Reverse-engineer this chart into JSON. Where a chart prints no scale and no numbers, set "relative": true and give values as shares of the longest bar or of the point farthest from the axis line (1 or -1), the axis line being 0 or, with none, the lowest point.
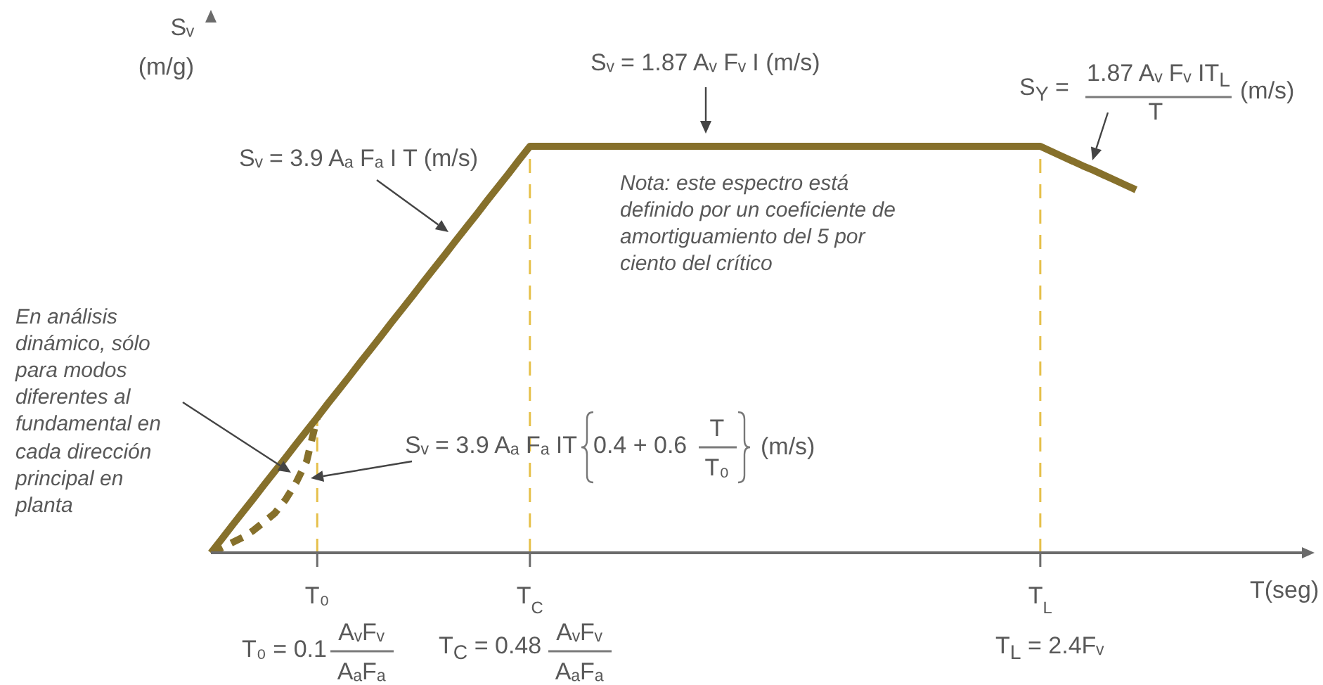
{
  "chart_data": {
    "type": "line",
    "xlabel": "T(seg)",
    "ylabel": "Sᵥ (m/g)",
    "relative": true,
    "marker": "none",
    "categories": [
      null,
      null,
      null,
      null,
      null,
      null,
      null,
      null,
      null,
      null,
      "T₀",
      null,
      null,
      null,
      null,
      null,
      null,
      null,
      null,
      null,
      null,
      null,
      null,
      null,
      null,
      null,
      null,
      null,
      null,
      null,
      "T$_{C}$",
      null,
      null,
      null,
      null,
      null,
      null,
      null,
      null,
      null,
      null,
      null,
      null,
      null,
      null,
      null,
      null,
      null,
      null,
      null,
      null,
      null,
      null,
      null,
      null,
      null,
      null,
      null,
      null,
      null,
      null,
      null,
      null,
      null,
      null,
      null,
      null,
      null,
      null,
      null,
      null,
      null,
      null,
      null,
      null,
      null,
      null,
      null,
      "T$_{L}$",
      null,
      null,
      null,
      null,
      null,
      null,
      null,
      null,
      null,
      null,
      null,
      null,
      null,
      null,
      null,
      null,
      null,
      null,
      null,
      null,
      null,
      null,
      null,
      null,
      null
    ],
    "series": [
      {
        "color": "#86702b",
        "line_style": "solid",
        "values": [
          0,
          0.033,
          0.067,
          0.1,
          0.133,
          0.167,
          0.2,
          0.233,
          0.267,
          0.3,
          0.333,
          0.367,
          0.4,
          0.433,
          0.467,
          0.5,
          0.533,
          0.567,
          0.6,
          0.633,
          0.667,
          0.7,
          0.733,
          0.767,
          0.8,
          0.833,
          0.867,
          0.9,
          0.933,
          0.967,
          1,
          1,
          1,
          1,
          1,
          1,
          1,
          1,
          1,
          1,
          1,
          1,
          1,
          1,
          1,
          1,
          1,
          1,
          1,
          1,
          1,
          1,
          1,
          1,
          1,
          1,
          1,
          1,
          1,
          1,
          1,
          1,
          1,
          1,
          1,
          1,
          1,
          1,
          1,
          1,
          1,
          1,
          1,
          1,
          1,
          1,
          1,
          1,
          1,
          0.988,
          0.976,
          0.964,
          0.952,
          0.941,
          0.929,
          0.917,
          0.905,
          0.893,
          null,
          null,
          null,
          null,
          null,
          null,
          null,
          null,
          null,
          null,
          null,
          null,
          null,
          null,
          null,
          null
        ]
      },
      {
        "color": "#86702b",
        "line_style": "dashed",
        "values": [
          0,
          0.012,
          0.025,
          0.038,
          0.055,
          0.076,
          0.097,
          0.13,
          0.172,
          0.225,
          0.333,
          null,
          null,
          null,
          null,
          null,
          null,
          null,
          null,
          null,
          null,
          null,
          null,
          null,
          null,
          null,
          null,
          null,
          null,
          null,
          null,
          null,
          null,
          null,
          null,
          null,
          null,
          null,
          null,
          null,
          null,
          null,
          null,
          null,
          null,
          null,
          null,
          null,
          null,
          null,
          null,
          null,
          null,
          null,
          null,
          null,
          null,
          null,
          null,
          null,
          null,
          null,
          null,
          null,
          null,
          null,
          null,
          null,
          null,
          null,
          null,
          null,
          null,
          null,
          null,
          null,
          null,
          null,
          null,
          null,
          null,
          null,
          null,
          null,
          null,
          null,
          null,
          null,
          null,
          null,
          null,
          null,
          null,
          null,
          null,
          null,
          null,
          null,
          null,
          null,
          null,
          null,
          null,
          null
        ]
      }
    ],
    "ref_lines": [
      {
        "axis": "x",
        "value": "T₀",
        "color": "#e6c04a",
        "line_style": "dashed"
      },
      {
        "axis": "x",
        "value": "T$_{C}$",
        "color": "#e6c04a",
        "line_style": "dashed"
      },
      {
        "axis": "x",
        "value": "T$_{L}$",
        "color": "#e6c04a",
        "line_style": "dashed"
      }
    ],
    "annotations": [
      "Sᵥ = 1.87 Aᵥ Fᵥ I (m/s)",
      "S$_{Y}$ =",
      "1.87 Aᵥ Fᵥ IT$_{L}$",
      "T",
      "(m/s)",
      "Sᵥ = 3.9 Aₐ Fₐ I T (m/s)",
      "Nota: este espectro está definido por un coeficiente de amortiguamiento del 5 por ciento del crítico",
      "En análisis dinámico, sólo para modos diferentes al fundamental en cada dirección principal en planta",
      "Sᵥ = 3.9 Aₐ Fₐ IT",
      "0.4 + 0.6",
      "T",
      "T₀",
      "(m/s)",
      "T₀ = 0.1",
      "AᵥFᵥ",
      "AₐFₐ",
      "T$_{C}$ = 0.48",
      "AᵥFᵥ",
      "AₐFₐ",
      "T$_{L}$ = 2.4Fᵥ"
    ]
  }
}
